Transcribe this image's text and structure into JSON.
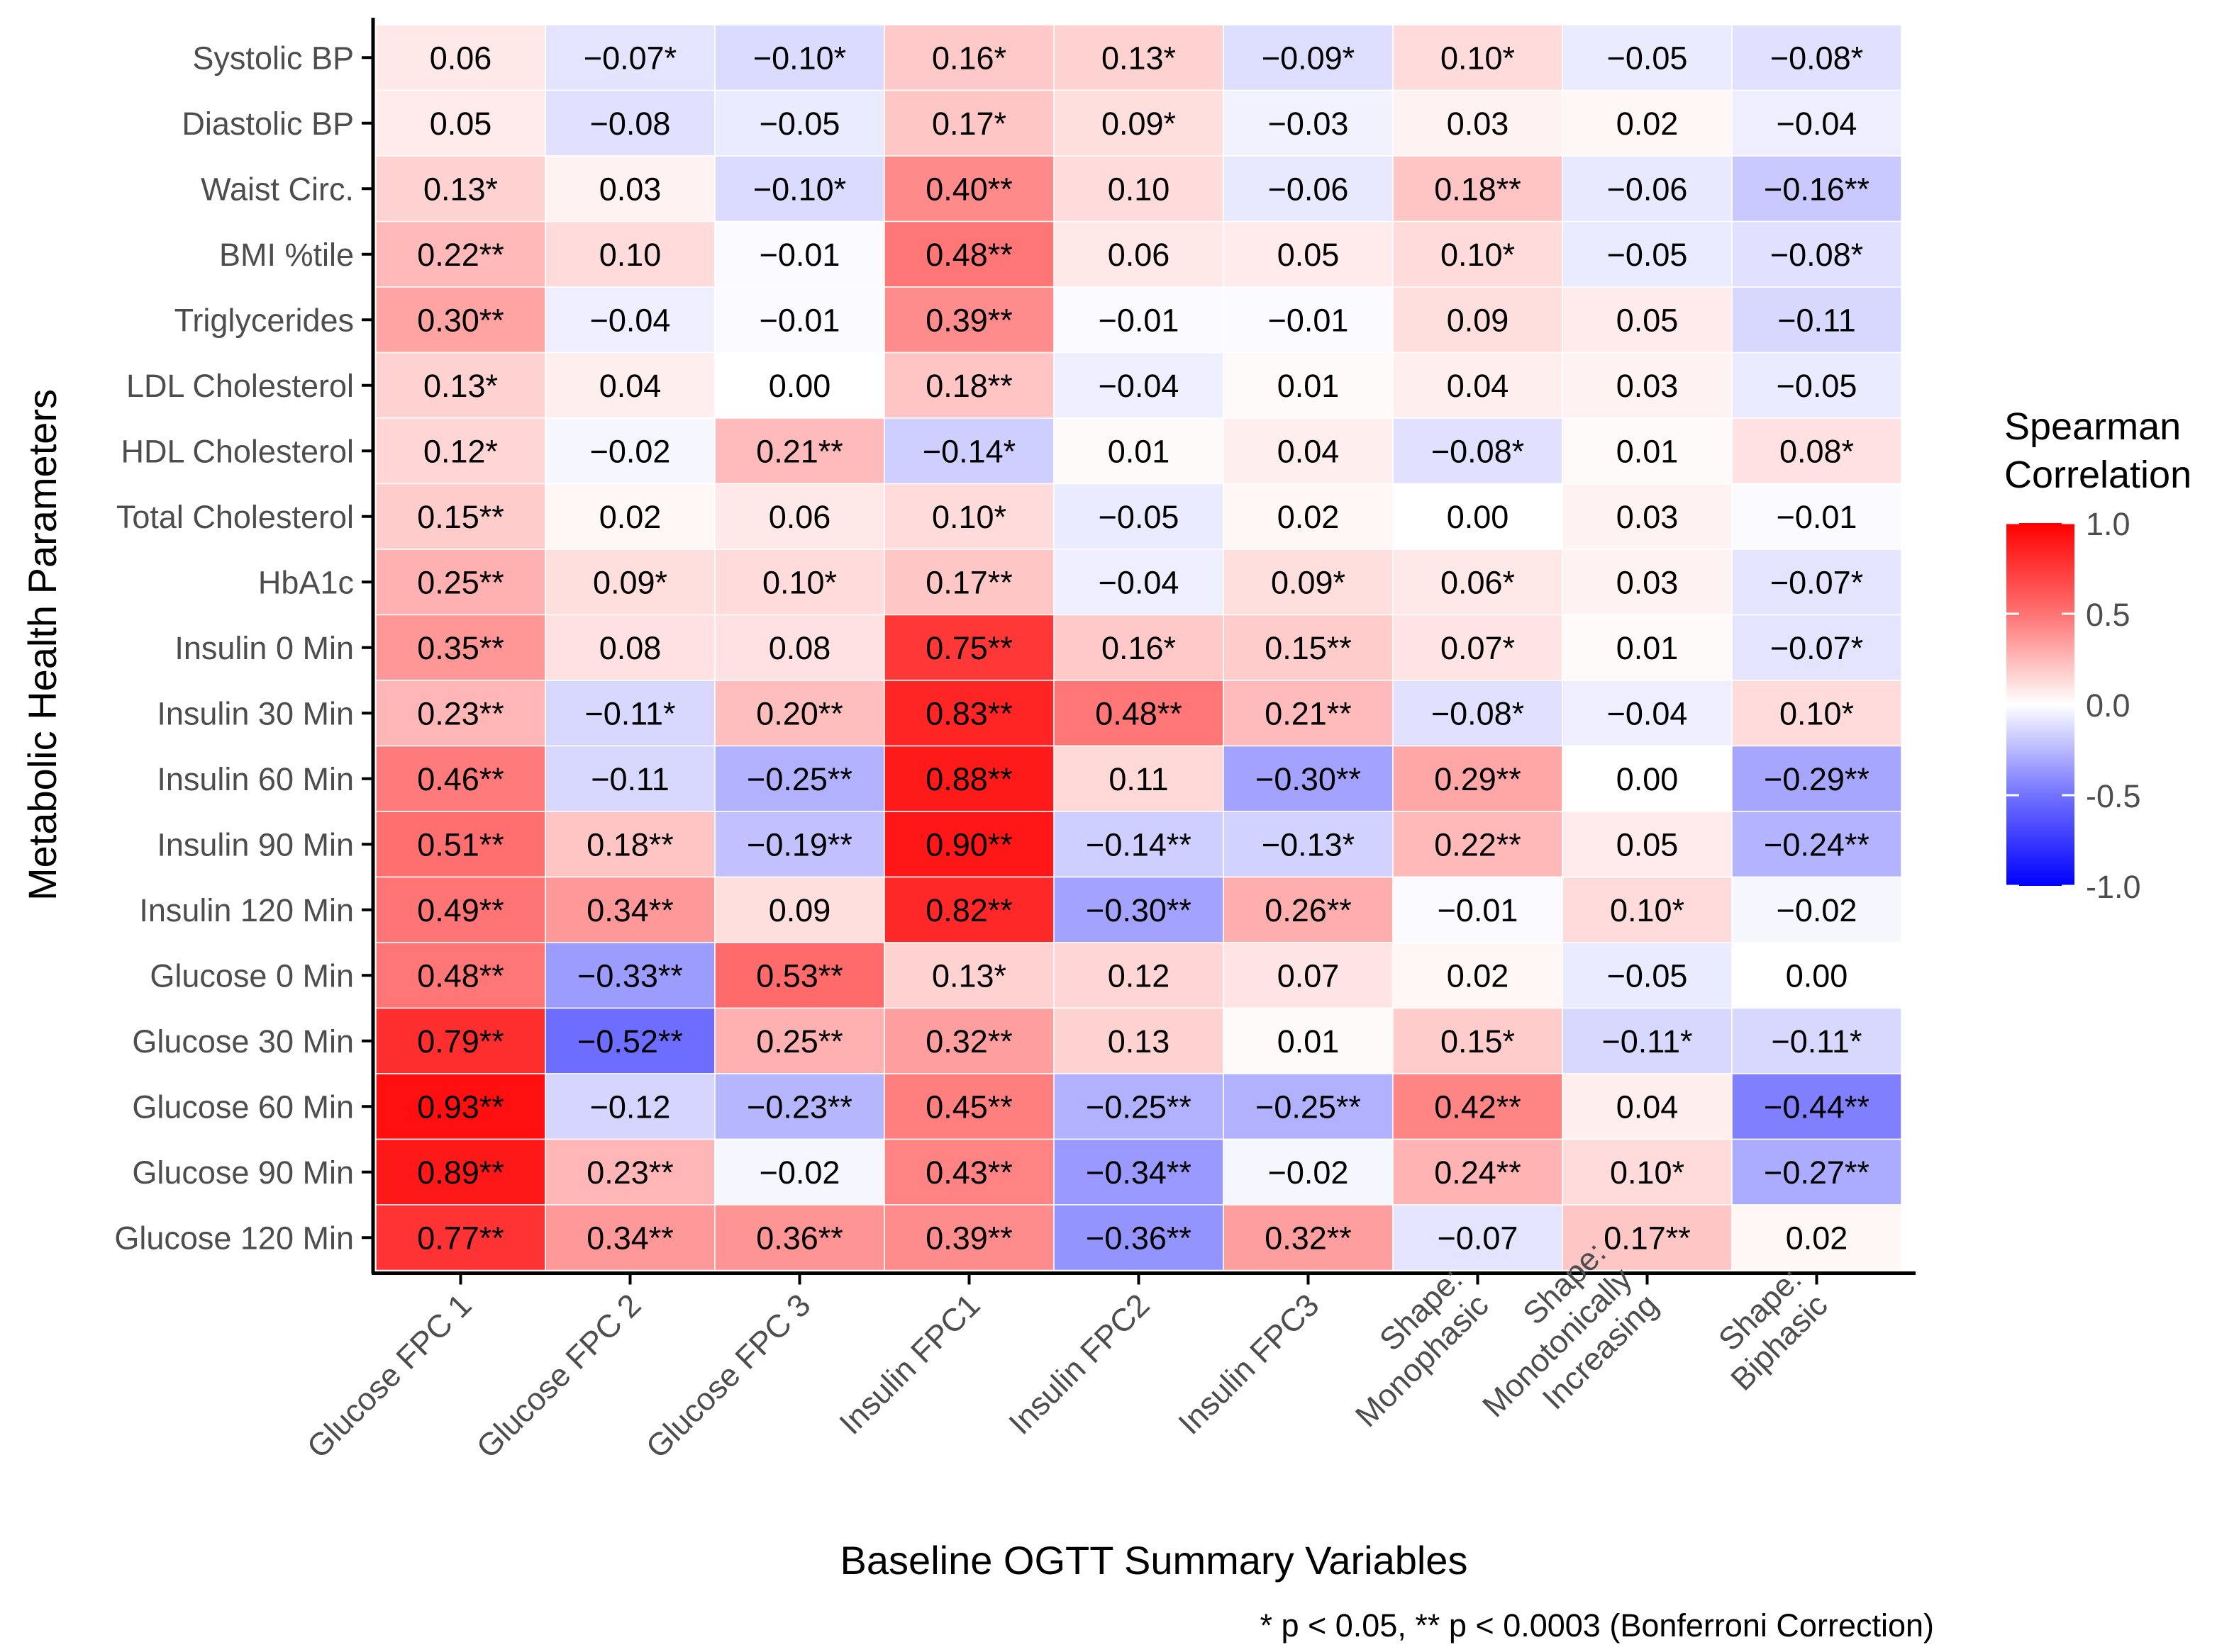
{
  "chart_data": {
    "type": "heatmap",
    "xlabel": "Baseline OGTT Summary Variables",
    "ylabel": "Metabolic Health Parameters",
    "footnote": "* p < 0.05, ** p < 0.0003 (Bonferroni Correction)",
    "legend": {
      "title": [
        "Spearman",
        "Correlation"
      ],
      "ticks": [
        "1.0",
        "0.5",
        "0.0",
        "-0.5",
        "-1.0"
      ],
      "tick_values": [
        1.0,
        0.5,
        0.0,
        -0.5,
        -1.0
      ],
      "range": [
        -1.0,
        1.0
      ],
      "low_color": "#0000ff",
      "mid_color": "#ffffff",
      "high_color": "#ff0000",
      "position": "right"
    },
    "columns": [
      [
        "Glucose FPC 1"
      ],
      [
        "Glucose FPC 2"
      ],
      [
        "Glucose FPC 3"
      ],
      [
        "Insulin FPC1"
      ],
      [
        "Insulin FPC2"
      ],
      [
        "Insulin FPC3"
      ],
      [
        "Shape:",
        "Monophasic"
      ],
      [
        "Shape:",
        "Monotonically",
        "Increasing"
      ],
      [
        "Shape:",
        "Biphasic"
      ]
    ],
    "rows": [
      "Systolic BP",
      "Diastolic BP",
      "Waist Circ.",
      "BMI %tile",
      "Triglycerides",
      "LDL Cholesterol",
      "HDL Cholesterol",
      "Total Cholesterol",
      "HbA1c",
      "Insulin 0 Min",
      "Insulin 30 Min",
      "Insulin 60 Min",
      "Insulin 90 Min",
      "Insulin 120 Min",
      "Glucose 0 Min",
      "Glucose 30 Min",
      "Glucose 60 Min",
      "Glucose 90 Min",
      "Glucose 120 Min"
    ],
    "values": [
      [
        0.06,
        -0.07,
        -0.1,
        0.16,
        0.13,
        -0.09,
        0.1,
        -0.05,
        -0.08
      ],
      [
        0.05,
        -0.08,
        -0.05,
        0.17,
        0.09,
        -0.03,
        0.03,
        0.02,
        -0.04
      ],
      [
        0.13,
        0.03,
        -0.1,
        0.4,
        0.1,
        -0.06,
        0.18,
        -0.06,
        -0.16
      ],
      [
        0.22,
        0.1,
        -0.01,
        0.48,
        0.06,
        0.05,
        0.1,
        -0.05,
        -0.08
      ],
      [
        0.3,
        -0.04,
        -0.01,
        0.39,
        -0.01,
        -0.01,
        0.09,
        0.05,
        -0.11
      ],
      [
        0.13,
        0.04,
        0.0,
        0.18,
        -0.04,
        0.01,
        0.04,
        0.03,
        -0.05
      ],
      [
        0.12,
        -0.02,
        0.21,
        -0.14,
        0.01,
        0.04,
        -0.08,
        0.01,
        0.08
      ],
      [
        0.15,
        0.02,
        0.06,
        0.1,
        -0.05,
        0.02,
        0.0,
        0.03,
        -0.01
      ],
      [
        0.25,
        0.09,
        0.1,
        0.17,
        -0.04,
        0.09,
        0.06,
        0.03,
        -0.07
      ],
      [
        0.35,
        0.08,
        0.08,
        0.75,
        0.16,
        0.15,
        0.07,
        0.01,
        -0.07
      ],
      [
        0.23,
        -0.11,
        0.2,
        0.83,
        0.48,
        0.21,
        -0.08,
        -0.04,
        0.1
      ],
      [
        0.46,
        -0.11,
        -0.25,
        0.88,
        0.11,
        -0.3,
        0.29,
        0.0,
        -0.29
      ],
      [
        0.51,
        0.18,
        -0.19,
        0.9,
        -0.14,
        -0.13,
        0.22,
        0.05,
        -0.24
      ],
      [
        0.49,
        0.34,
        0.09,
        0.82,
        -0.3,
        0.26,
        -0.01,
        0.1,
        -0.02
      ],
      [
        0.48,
        -0.33,
        0.53,
        0.13,
        0.12,
        0.07,
        0.02,
        -0.05,
        0.0
      ],
      [
        0.79,
        -0.52,
        0.25,
        0.32,
        0.13,
        0.01,
        0.15,
        -0.11,
        -0.11
      ],
      [
        0.93,
        -0.12,
        -0.23,
        0.45,
        -0.25,
        -0.25,
        0.42,
        0.04,
        -0.44
      ],
      [
        0.89,
        0.23,
        -0.02,
        0.43,
        -0.34,
        -0.02,
        0.24,
        0.1,
        -0.27
      ],
      [
        0.77,
        0.34,
        0.36,
        0.39,
        -0.36,
        0.32,
        -0.07,
        0.17,
        0.02
      ]
    ],
    "labels": [
      [
        "0.06",
        "−0.07*",
        "−0.10*",
        "0.16*",
        "0.13*",
        "−0.09*",
        "0.10*",
        "−0.05",
        "−0.08*"
      ],
      [
        "0.05",
        "−0.08",
        "−0.05",
        "0.17*",
        "0.09*",
        "−0.03",
        "0.03",
        "0.02",
        "−0.04"
      ],
      [
        "0.13*",
        "0.03",
        "−0.10*",
        "0.40**",
        "0.10",
        "−0.06",
        "0.18**",
        "−0.06",
        "−0.16**"
      ],
      [
        "0.22**",
        "0.10",
        "−0.01",
        "0.48**",
        "0.06",
        "0.05",
        "0.10*",
        "−0.05",
        "−0.08*"
      ],
      [
        "0.30**",
        "−0.04",
        "−0.01",
        "0.39**",
        "−0.01",
        "−0.01",
        "0.09",
        "0.05",
        "−0.11"
      ],
      [
        "0.13*",
        "0.04",
        "0.00",
        "0.18**",
        "−0.04",
        "0.01",
        "0.04",
        "0.03",
        "−0.05"
      ],
      [
        "0.12*",
        "−0.02",
        "0.21**",
        "−0.14*",
        "0.01",
        "0.04",
        "−0.08*",
        "0.01",
        "0.08*"
      ],
      [
        "0.15**",
        "0.02",
        "0.06",
        "0.10*",
        "−0.05",
        "0.02",
        "0.00",
        "0.03",
        "−0.01"
      ],
      [
        "0.25**",
        "0.09*",
        "0.10*",
        "0.17**",
        "−0.04",
        "0.09*",
        "0.06*",
        "0.03",
        "−0.07*"
      ],
      [
        "0.35**",
        "0.08",
        "0.08",
        "0.75**",
        "0.16*",
        "0.15**",
        "0.07*",
        "0.01",
        "−0.07*"
      ],
      [
        "0.23**",
        "−0.11*",
        "0.20**",
        "0.83**",
        "0.48**",
        "0.21**",
        "−0.08*",
        "−0.04",
        "0.10*"
      ],
      [
        "0.46**",
        "−0.11",
        "−0.25**",
        "0.88**",
        "0.11",
        "−0.30**",
        "0.29**",
        "0.00",
        "−0.29**"
      ],
      [
        "0.51**",
        "0.18**",
        "−0.19**",
        "0.90**",
        "−0.14**",
        "−0.13*",
        "0.22**",
        "0.05",
        "−0.24**"
      ],
      [
        "0.49**",
        "0.34**",
        "0.09",
        "0.82**",
        "−0.30**",
        "0.26**",
        "−0.01",
        "0.10*",
        "−0.02"
      ],
      [
        "0.48**",
        "−0.33**",
        "0.53**",
        "0.13*",
        "0.12",
        "0.07",
        "0.02",
        "−0.05",
        "0.00"
      ],
      [
        "0.79**",
        "−0.52**",
        "0.25**",
        "0.32**",
        "0.13",
        "0.01",
        "0.15*",
        "−0.11*",
        "−0.11*"
      ],
      [
        "0.93**",
        "−0.12",
        "−0.23**",
        "0.45**",
        "−0.25**",
        "−0.25**",
        "0.42**",
        "0.04",
        "−0.44**"
      ],
      [
        "0.89**",
        "0.23**",
        "−0.02",
        "0.43**",
        "−0.34**",
        "−0.02",
        "0.24**",
        "0.10*",
        "−0.27**"
      ],
      [
        "0.77**",
        "0.34**",
        "0.36**",
        "0.39**",
        "−0.36**",
        "0.32**",
        "−0.07",
        "0.17**",
        "0.02"
      ]
    ]
  }
}
